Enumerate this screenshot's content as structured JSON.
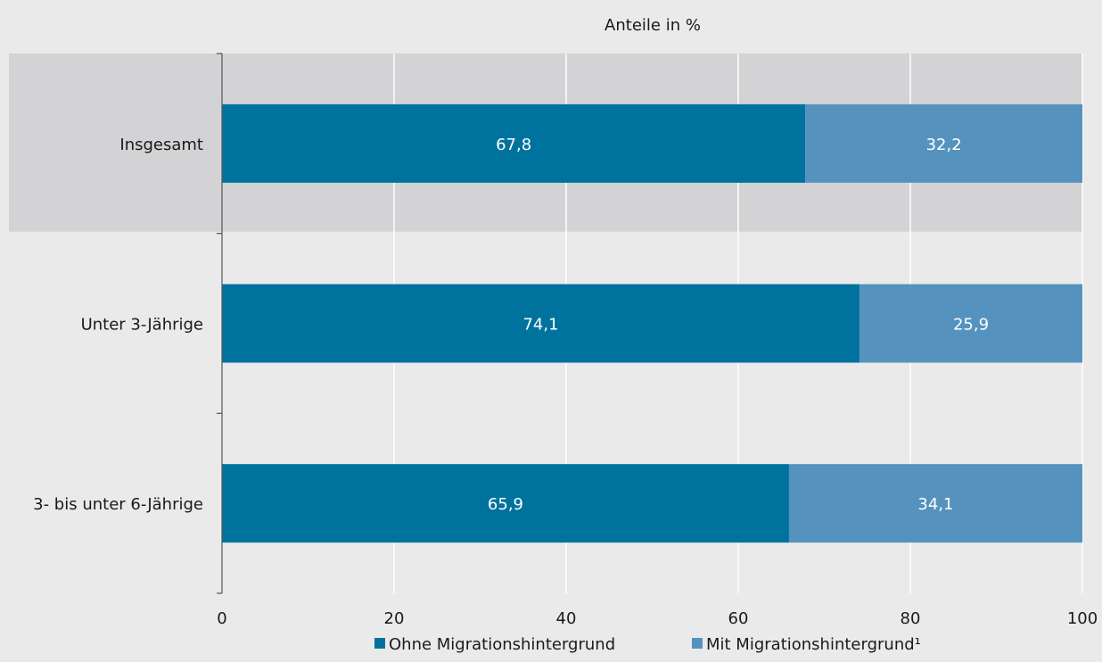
{
  "chart_data": {
    "type": "bar",
    "orientation": "horizontal",
    "stacked": true,
    "xlabel": "Anteile in %",
    "xlim": [
      0,
      100
    ],
    "xticks": [
      0,
      20,
      40,
      60,
      80,
      100
    ],
    "grid": true,
    "legend_position": "bottom",
    "highlighted_category": "Insgesamt",
    "categories": [
      "Insgesamt",
      "Unter 3-Jährige",
      "3- bis unter 6-Jährige"
    ],
    "series": [
      {
        "name": "Ohne Migrationshintergrund",
        "values": [
          67.8,
          74.1,
          65.9
        ],
        "labels": [
          "67,8",
          "74,1",
          "65,9"
        ],
        "color": "#00729e"
      },
      {
        "name": "Mit Migrationshintergrund¹",
        "values": [
          32.2,
          25.9,
          34.1
        ],
        "labels": [
          "32,2",
          "25,9",
          "34,1"
        ],
        "color": "#5593be"
      }
    ]
  },
  "colors": {
    "background": "#eaeaea",
    "highlight_band": "#d3d3d5",
    "grid": "#ffffff",
    "axis": "#555555"
  }
}
